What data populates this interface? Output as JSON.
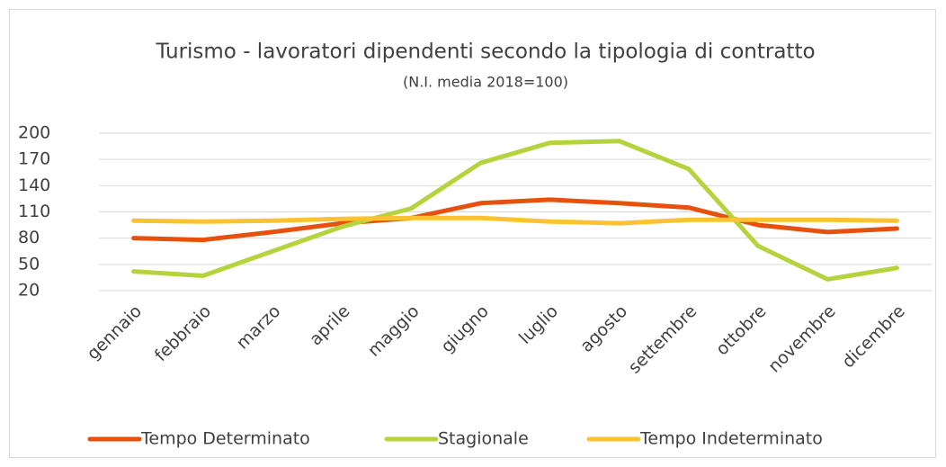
{
  "chart_data": {
    "type": "line",
    "title": "Turismo - lavoratori dipendenti secondo la tipologia di contratto",
    "subtitle": "(N.I. media 2018=100)",
    "categories": [
      "gennaio",
      "febbraio",
      "marzo",
      "aprile",
      "maggio",
      "giugno",
      "luglio",
      "agosto",
      "settembre",
      "ottobre",
      "novembre",
      "dicembre"
    ],
    "series": [
      {
        "name": "Tempo Determinato",
        "color": "#e8500e",
        "values": [
          80,
          78,
          87,
          97,
          103,
          120,
          124,
          120,
          115,
          95,
          87,
          91
        ]
      },
      {
        "name": "Stagionale",
        "color": "#b5d33d",
        "values": [
          42,
          37,
          65,
          93,
          114,
          166,
          189,
          191,
          159,
          71,
          33,
          46
        ]
      },
      {
        "name": "Tempo Indeterminato",
        "color": "#fcc22f",
        "values": [
          100,
          99,
          100,
          102,
          103,
          103,
          99,
          97,
          101,
          101,
          101,
          100
        ]
      }
    ],
    "ylim": [
      20,
      200
    ],
    "yticks": [
      20,
      50,
      80,
      110,
      140,
      170,
      200
    ],
    "grid": true,
    "legend": "bottom"
  }
}
